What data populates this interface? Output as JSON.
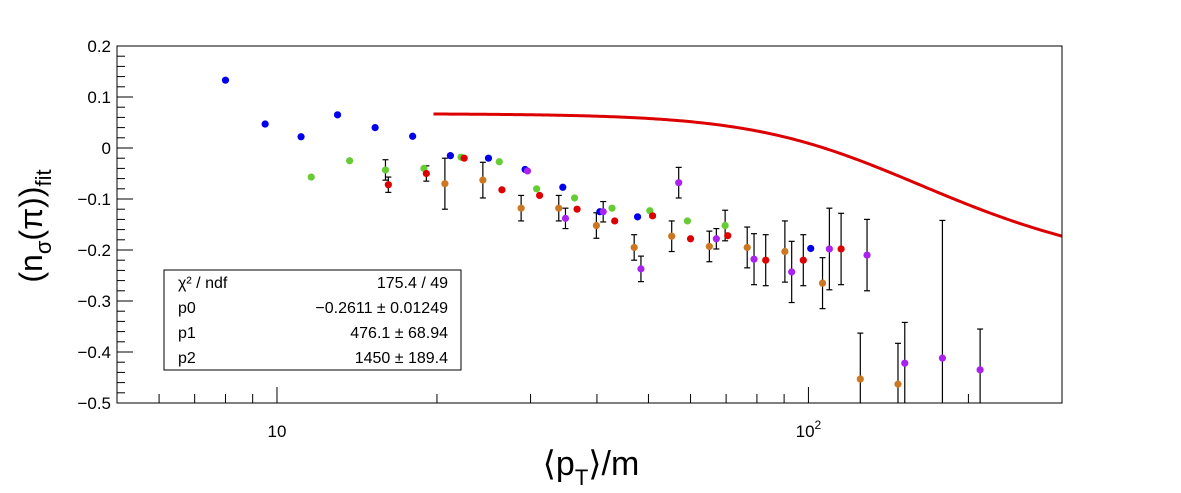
{
  "chart_data": {
    "type": "scatter",
    "xlabel": {
      "main": "⟨p",
      "sub": "T",
      "tail": "⟩/m"
    },
    "ylabel": {
      "main": "(n",
      "sub": "σ",
      "mid": "(π))",
      "sub2": "fit"
    },
    "x_scale": "log",
    "xlim": [
      5,
      300
    ],
    "ylim": [
      -0.5,
      0.2
    ],
    "y_ticks": [
      "0.2",
      "0.1",
      "0",
      "−0.1",
      "−0.2",
      "−0.3",
      "−0.4",
      "−0.5"
    ],
    "y_tick_values": [
      0.2,
      0.1,
      0,
      -0.1,
      -0.2,
      -0.3,
      -0.4,
      -0.5
    ],
    "x_ticks": [
      {
        "value": 10,
        "base": "10",
        "exp": ""
      },
      {
        "value": 100,
        "base": "10",
        "exp": "2"
      }
    ],
    "grid": false,
    "colors": {
      "blue": "#0000ee",
      "green": "#66cc33",
      "red": "#dd0000",
      "orange": "#cc7722",
      "purple": "#aa22ee",
      "fit": "#dd0000",
      "error_bar": "#000000"
    },
    "series": [
      {
        "color": "blue",
        "points": [
          {
            "x": 8.0,
            "y": 0.133
          },
          {
            "x": 9.5,
            "y": 0.047
          },
          {
            "x": 11.1,
            "y": 0.022
          },
          {
            "x": 13.0,
            "y": 0.065
          },
          {
            "x": 15.3,
            "y": 0.04
          },
          {
            "x": 18.0,
            "y": 0.023
          },
          {
            "x": 21.2,
            "y": -0.015
          },
          {
            "x": 25.0,
            "y": -0.02
          },
          {
            "x": 29.3,
            "y": -0.042
          },
          {
            "x": 34.5,
            "y": -0.077
          },
          {
            "x": 40.5,
            "y": -0.125
          },
          {
            "x": 47.7,
            "y": -0.135
          },
          {
            "x": 101,
            "y": -0.197
          }
        ]
      },
      {
        "color": "green",
        "points": [
          {
            "x": 11.6,
            "y": -0.057
          },
          {
            "x": 13.7,
            "y": -0.025
          },
          {
            "x": 16.0,
            "y": -0.043,
            "err": 0.02
          },
          {
            "x": 18.9,
            "y": -0.04
          },
          {
            "x": 22.2,
            "y": -0.018
          },
          {
            "x": 26.2,
            "y": -0.027
          },
          {
            "x": 30.8,
            "y": -0.08
          },
          {
            "x": 36.3,
            "y": -0.098
          },
          {
            "x": 42.7,
            "y": -0.118
          },
          {
            "x": 50.3,
            "y": -0.123
          },
          {
            "x": 59.2,
            "y": -0.143
          },
          {
            "x": 69.7,
            "y": -0.152,
            "err": 0.03
          }
        ]
      },
      {
        "color": "red",
        "points": [
          {
            "x": 16.2,
            "y": -0.072,
            "err": 0.015
          },
          {
            "x": 19.1,
            "y": -0.05,
            "err": 0.015
          },
          {
            "x": 22.5,
            "y": -0.02
          },
          {
            "x": 26.5,
            "y": -0.082
          },
          {
            "x": 31.2,
            "y": -0.093
          },
          {
            "x": 36.7,
            "y": -0.12
          },
          {
            "x": 43.2,
            "y": -0.143
          },
          {
            "x": 50.9,
            "y": -0.133
          },
          {
            "x": 60.0,
            "y": -0.178
          },
          {
            "x": 70.5,
            "y": -0.172
          },
          {
            "x": 83.1,
            "y": -0.22,
            "err": 0.05
          },
          {
            "x": 97.8,
            "y": -0.22,
            "err": 0.05
          },
          {
            "x": 115.2,
            "y": -0.198,
            "err": 0.07
          }
        ]
      },
      {
        "color": "orange",
        "points": [
          {
            "x": 20.7,
            "y": -0.07,
            "err": 0.05
          },
          {
            "x": 24.4,
            "y": -0.063,
            "err": 0.035
          },
          {
            "x": 28.8,
            "y": -0.118,
            "err": 0.025
          },
          {
            "x": 33.9,
            "y": -0.118,
            "err": 0.025
          },
          {
            "x": 39.9,
            "y": -0.152,
            "err": 0.025
          },
          {
            "x": 47.0,
            "y": -0.195,
            "err": 0.025
          },
          {
            "x": 55.3,
            "y": -0.173,
            "err": 0.03
          },
          {
            "x": 65.1,
            "y": -0.193,
            "err": 0.03
          },
          {
            "x": 76.7,
            "y": -0.195,
            "err": 0.04
          },
          {
            "x": 90.3,
            "y": -0.203,
            "err": 0.06
          },
          {
            "x": 106.3,
            "y": -0.265,
            "err": 0.05
          },
          {
            "x": 125.2,
            "y": -0.453,
            "err": 0.09
          },
          {
            "x": 147.4,
            "y": -0.463,
            "err": 0.08
          }
        ]
      },
      {
        "color": "purple",
        "points": [
          {
            "x": 29.6,
            "y": -0.045
          },
          {
            "x": 34.9,
            "y": -0.138,
            "err": 0.02
          },
          {
            "x": 41.1,
            "y": -0.125,
            "err": 0.02
          },
          {
            "x": 48.4,
            "y": -0.237,
            "err": 0.025
          },
          {
            "x": 57.0,
            "y": -0.068,
            "err": 0.03
          },
          {
            "x": 67.1,
            "y": -0.178,
            "err": 0.02
          },
          {
            "x": 79.0,
            "y": -0.218,
            "err": 0.05
          },
          {
            "x": 93.0,
            "y": -0.243,
            "err": 0.06
          },
          {
            "x": 109.5,
            "y": -0.198,
            "err": 0.08
          },
          {
            "x": 128.9,
            "y": -0.21,
            "err": 0.07
          },
          {
            "x": 151.8,
            "y": -0.422,
            "err": 0.08
          },
          {
            "x": 178.7,
            "y": -0.412,
            "err": 0.27
          },
          {
            "x": 210.4,
            "y": -0.435,
            "err": 0.08
          }
        ]
      }
    ],
    "fit": {
      "color": "fit",
      "x_start": 19.7,
      "x_end": 300,
      "p0": -0.2611,
      "p1": 476.1,
      "p2": 1450
    },
    "stats_box": {
      "rows": [
        {
          "label": "χ² / ndf",
          "value": "175.4 / 49"
        },
        {
          "label": "p0",
          "value": "−0.2611 ± 0.01249"
        },
        {
          "label": "p1",
          "value": "476.1 ± 68.94"
        },
        {
          "label": "p2",
          "value": "1450 ± 189.4"
        }
      ]
    }
  }
}
